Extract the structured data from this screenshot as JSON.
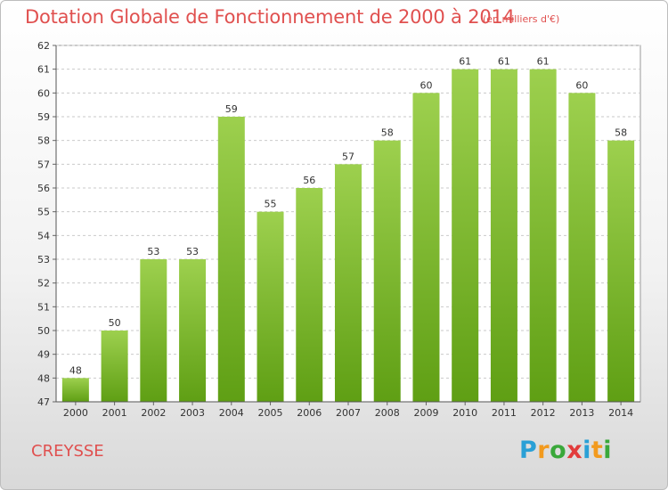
{
  "header": {
    "title": "Dotation Globale de Fonctionnement de 2000 à 2014",
    "subtitle": "(en milliers d'€)"
  },
  "footer": {
    "commune": "CREYSSE",
    "logo_letters": [
      "P",
      "r",
      "o",
      "x",
      "i",
      "t",
      "i"
    ],
    "logo_colors": [
      "#2aa0d6",
      "#f29a1e",
      "#3aa83a",
      "#e23b3b",
      "#2aa0d6",
      "#f29a1e",
      "#3aa83a"
    ]
  },
  "colors": {
    "bar_light": "#9dd04e",
    "bar_dark": "#5f9f14",
    "title": "#e0504f",
    "text": "#333333",
    "grid": "#c9c9c9"
  },
  "chart_data": {
    "type": "bar",
    "categories": [
      "2000",
      "2001",
      "2002",
      "2003",
      "2004",
      "2005",
      "2006",
      "2007",
      "2008",
      "2009",
      "2010",
      "2011",
      "2012",
      "2013",
      "2014"
    ],
    "values": [
      48,
      50,
      53,
      53,
      59,
      55,
      56,
      57,
      58,
      60,
      61,
      61,
      61,
      60,
      58
    ],
    "ylim": [
      47,
      62
    ],
    "yticks": [
      47,
      48,
      49,
      50,
      51,
      52,
      53,
      54,
      55,
      56,
      57,
      58,
      59,
      60,
      61,
      62
    ],
    "grid": true
  }
}
